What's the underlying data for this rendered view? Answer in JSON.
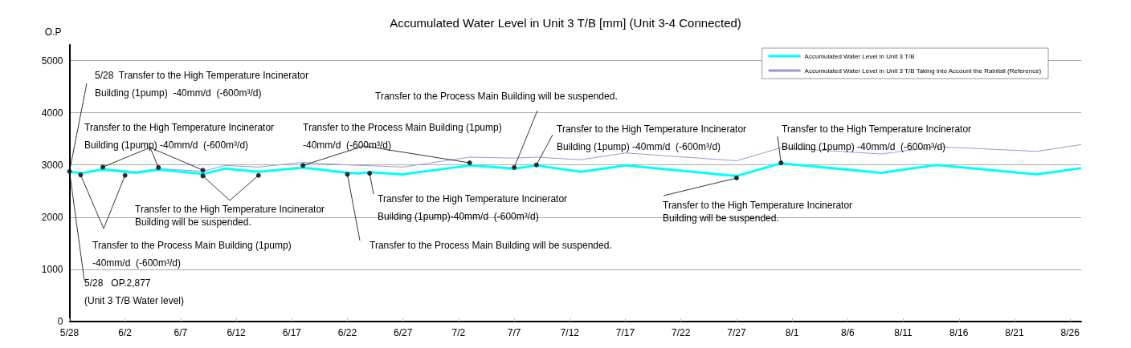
{
  "chart_data": {
    "type": "line",
    "title": "Accumulated Water Level in Unit 3 T/B [mm] (Unit 3-4 Connected)",
    "ylabel": "O.P",
    "xlim": [
      "--05-28",
      "--08-27"
    ],
    "xticks": [
      {
        "value": "--05-28",
        "label": "5/28"
      },
      {
        "value": "--06-02",
        "label": "6/2"
      },
      {
        "value": "--06-07",
        "label": "6/7"
      },
      {
        "value": "--06-12",
        "label": "6/12"
      },
      {
        "value": "--06-17",
        "label": "6/17"
      },
      {
        "value": "--06-22",
        "label": "6/22"
      },
      {
        "value": "--06-27",
        "label": "6/27"
      },
      {
        "value": "--07-02",
        "label": "7/2"
      },
      {
        "value": "--07-07",
        "label": "7/7"
      },
      {
        "value": "--07-12",
        "label": "7/12"
      },
      {
        "value": "--07-17",
        "label": "7/17"
      },
      {
        "value": "--07-22",
        "label": "7/22"
      },
      {
        "value": "--07-27",
        "label": "7/27"
      },
      {
        "value": "--08-01",
        "label": "8/1"
      },
      {
        "value": "--08-06",
        "label": "8/6"
      },
      {
        "value": "--08-11",
        "label": "8/11"
      },
      {
        "value": "--08-16",
        "label": "8/16"
      },
      {
        "value": "--08-21",
        "label": "8/21"
      },
      {
        "value": "--08-26",
        "label": "8/26"
      }
    ],
    "ylim": [
      0,
      5300
    ],
    "yticks": [
      0,
      1000,
      2000,
      3000,
      4000,
      5000
    ],
    "grid": "y",
    "legend": "top right",
    "marker": "none",
    "series": [
      {
        "name": "Accumulated Water Level in Unit 3 T/B",
        "color": "#00ffff",
        "x": [
          "--05-28",
          "--05-29",
          "--05-31",
          "--06-03",
          "--06-05",
          "--06-09",
          "--06-11",
          "--06-14",
          "--06-18",
          "--06-22",
          "--06-23",
          "--06-24",
          "--06-27",
          "--07-03",
          "--07-07",
          "--07-09",
          "--07-13",
          "--07-17",
          "--07-27",
          "--07-31",
          "--08-09",
          "--08-14",
          "--08-23",
          "--08-27"
        ],
        "values": [
          2877,
          2840,
          2910,
          2850,
          2910,
          2830,
          2930,
          2870,
          2950,
          2850,
          2840,
          2860,
          2820,
          2990,
          2930,
          2990,
          2870,
          2990,
          2790,
          3030,
          2850,
          3000,
          2820,
          2940
        ]
      },
      {
        "name": "Accumulated Water Level in Unit 3 T/B Taking into Account the Rainfall (Reference)",
        "color": "#9999cc",
        "x": [
          "--05-28",
          "--05-29",
          "--05-31",
          "--06-03",
          "--06-05",
          "--06-09",
          "--06-11",
          "--06-14",
          "--06-18",
          "--06-22",
          "--06-27",
          "--07-03",
          "--07-07",
          "--07-09",
          "--07-13",
          "--07-17",
          "--07-27",
          "--07-31",
          "--08-09",
          "--08-14",
          "--08-23",
          "--08-27"
        ],
        "values": [
          2877,
          2850,
          2930,
          2870,
          2930,
          2880,
          2990,
          2960,
          3050,
          3000,
          2960,
          3150,
          3130,
          3150,
          3100,
          3230,
          3080,
          3330,
          3210,
          3350,
          3260,
          3390
        ]
      },
      {
        "type": "scatter",
        "color": "#000000",
        "x": [
          "--05-28",
          "--05-29",
          "--05-31",
          "--06-02",
          "--06-05",
          "--06-09",
          "--06-09",
          "--06-14",
          "--06-18",
          "--06-22",
          "--06-24",
          "--07-03",
          "--07-07",
          "--07-09",
          "--07-27",
          "--07-31"
        ],
        "values": [
          2877,
          2810,
          2960,
          2800,
          2950,
          2790,
          2900,
          2800,
          2990,
          2820,
          2840,
          3040,
          2950,
          3000,
          2750,
          3040
        ]
      }
    ],
    "annotations": [
      {
        "text": "5/28  Transfer to the High Temperature Incinerator\nBuilding (1pump)  -40mm/d  (-600m³/d)",
        "x": "--05-28",
        "y": 2877
      },
      {
        "text": "Transfer to the High Temperature Incinerator\nBuilding (1pump) -40mm/d  (-600m³/d)",
        "x": "--05-31",
        "y": 2960
      },
      {
        "text": "Transfer to the Process Main Building (1pump)\n-40mm/d  (-600m³/d)",
        "x": "--06-18",
        "y": 2990
      },
      {
        "text": "Transfer to the Process Main Building will be suspended.",
        "x": "--07-07",
        "y": 2950
      },
      {
        "text": "Transfer to the High Temperature Incinerator\nBuilding (1pump) -40mm/d  (-600m³/d)",
        "x": "--07-09",
        "y": 3000
      },
      {
        "text": "Transfer to the High Temperature Incinerator\nBuilding (1pump) -40mm/d  (-600m³/d)",
        "x": "--07-31",
        "y": 3040
      },
      {
        "text": "Transfer to the High Temperature Incinerator\nBuilding will be suspended.",
        "x": "--06-09",
        "y": 2790
      },
      {
        "text": "Transfer to the High Temperature Incinerator\nBuilding (1pump)-40mm/d  (-600m³/d)",
        "x": "--06-24",
        "y": 2840
      },
      {
        "text": "Transfer to the Process Main Building will be suspended.",
        "x": "--06-22",
        "y": 2820
      },
      {
        "text": "Transfer to the High Temperature Incinerator\nBuilding will be suspended.",
        "x": "--07-27",
        "y": 2750
      },
      {
        "text": "Transfer to the Process Main Building (1pump)\n-40mm/d  (-600m³/d)",
        "x": "--05-29",
        "y": 2810
      },
      {
        "text": "5/28   OP.2,877\n(Unit 3 T/B Water level)",
        "x": "--05-28",
        "y": 2877
      }
    ]
  }
}
